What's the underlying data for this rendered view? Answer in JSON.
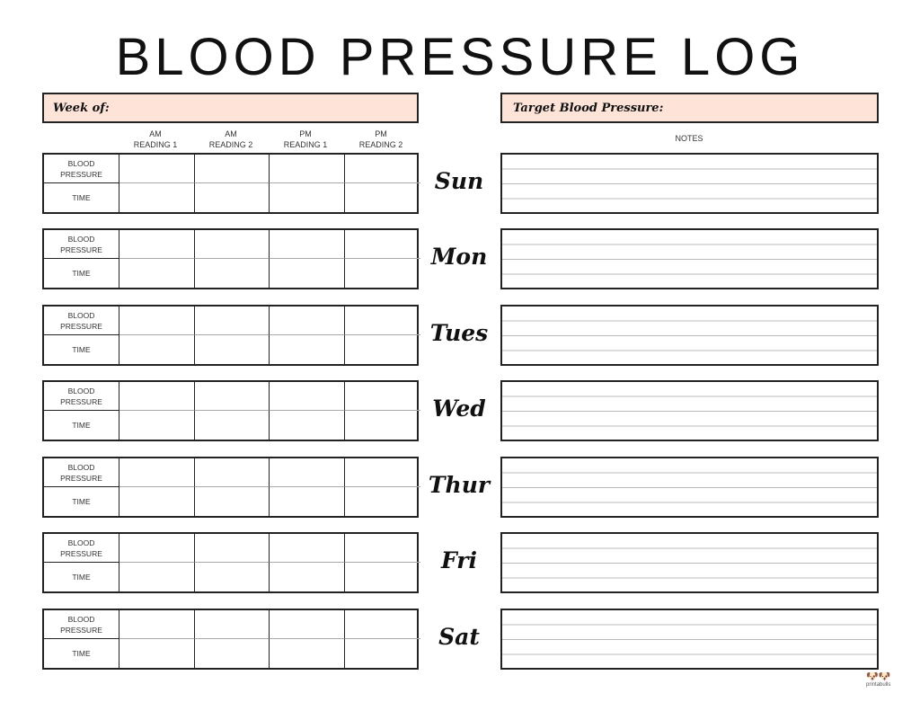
{
  "title": "BLOOD PRESSURE LOG",
  "week_label": "Week of:",
  "target_label": "Target Blood Pressure:",
  "columns": [
    {
      "line1": "AM",
      "line2": "READING 1"
    },
    {
      "line1": "AM",
      "line2": "READING 2"
    },
    {
      "line1": "PM",
      "line2": "READING 1"
    },
    {
      "line1": "PM",
      "line2": "READING 2"
    }
  ],
  "notes_label": "NOTES",
  "row_labels": {
    "bp_line1": "BLOOD",
    "bp_line2": "PRESSURE",
    "time": "TIME"
  },
  "days": [
    "Sun",
    "Mon",
    "Tues",
    "Wed",
    "Thur",
    "Fri",
    "Sat"
  ],
  "header_fill": "#fde3d8",
  "logo_text": "printabulls"
}
